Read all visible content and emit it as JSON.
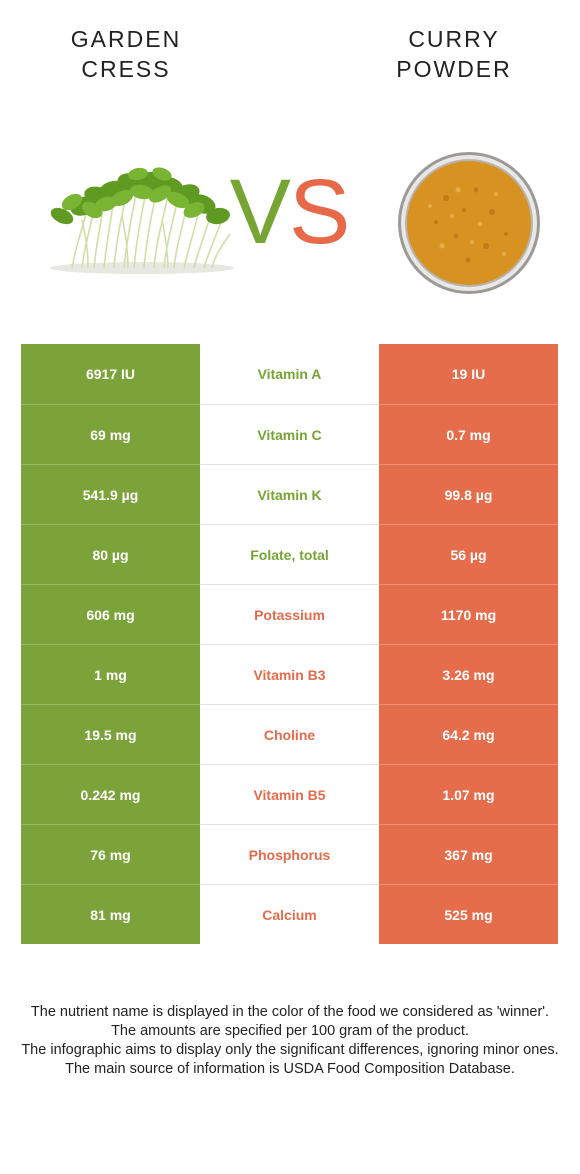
{
  "left_food": {
    "name_lines": [
      "Garden",
      "cress"
    ],
    "image_icon": "garden-cress-sprouts-image",
    "color": "#7ba33a"
  },
  "right_food": {
    "name_lines": [
      "Curry",
      "powder"
    ],
    "image_icon": "curry-powder-bowl-image",
    "color": "#e56d4c"
  },
  "vs": {
    "v": "V",
    "s": "S"
  },
  "rows": [
    {
      "left": "6917 IU",
      "nutrient": "Vitamin A",
      "right": "19 IU",
      "winner": "left"
    },
    {
      "left": "69 mg",
      "nutrient": "Vitamin C",
      "right": "0.7 mg",
      "winner": "left"
    },
    {
      "left": "541.9 µg",
      "nutrient": "Vitamin K",
      "right": "99.8 µg",
      "winner": "left"
    },
    {
      "left": "80 µg",
      "nutrient": "Folate, total",
      "right": "56 µg",
      "winner": "left"
    },
    {
      "left": "606 mg",
      "nutrient": "Potassium",
      "right": "1170 mg",
      "winner": "right"
    },
    {
      "left": "1 mg",
      "nutrient": "Vitamin B3",
      "right": "3.26 mg",
      "winner": "right"
    },
    {
      "left": "19.5 mg",
      "nutrient": "Choline",
      "right": "64.2 mg",
      "winner": "right"
    },
    {
      "left": "0.242 mg",
      "nutrient": "Vitamin B5",
      "right": "1.07 mg",
      "winner": "right"
    },
    {
      "left": "76 mg",
      "nutrient": "Phosphorus",
      "right": "367 mg",
      "winner": "right"
    },
    {
      "left": "81 mg",
      "nutrient": "Calcium",
      "right": "525 mg",
      "winner": "right"
    }
  ],
  "footer": {
    "lines": [
      "The nutrient name is displayed in the color of the food we considered as 'winner'.",
      "The amounts are specified per 100 gram of the product.",
      "The infographic aims to display only the significant differences, ignoring minor ones.",
      "The main source of information is USDA Food Composition Database."
    ]
  }
}
